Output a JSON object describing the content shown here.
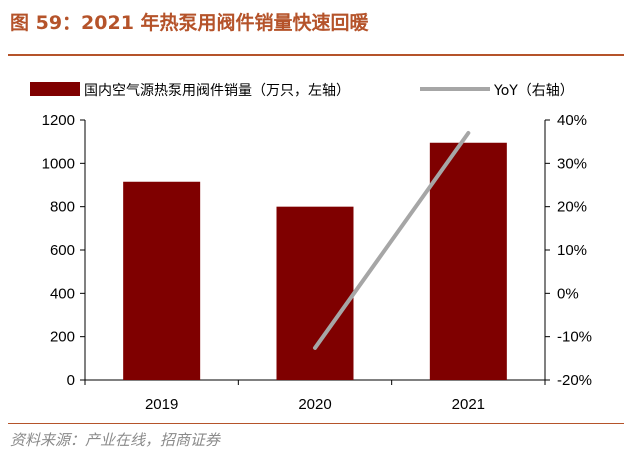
{
  "title": "图 59：2021 年热泵用阀件销量快速回暖",
  "source": "资料来源：产业在线，招商证券",
  "colors": {
    "bar": "#7f0000",
    "line": "#a6a6a6",
    "title": "#b5532a"
  },
  "chart_data": {
    "type": "bar",
    "categories": [
      "2019",
      "2020",
      "2021"
    ],
    "series": [
      {
        "name": "国内空气源热泵用阀件销量（万只，左轴）",
        "type": "bar",
        "axis": "left",
        "values": [
          915,
          800,
          1095
        ]
      },
      {
        "name": "YoY（右轴）",
        "type": "line",
        "axis": "right",
        "values": [
          null,
          -12.6,
          37.0
        ]
      }
    ],
    "left_axis": {
      "min": 0,
      "max": 1200,
      "ticks": [
        "0",
        "200",
        "400",
        "600",
        "800",
        "1000",
        "1200"
      ]
    },
    "right_axis": {
      "min": -20,
      "max": 40,
      "ticks": [
        "-20%",
        "-10%",
        "0%",
        "10%",
        "20%",
        "30%",
        "40%"
      ]
    },
    "legend_position": "top",
    "grid": false
  }
}
